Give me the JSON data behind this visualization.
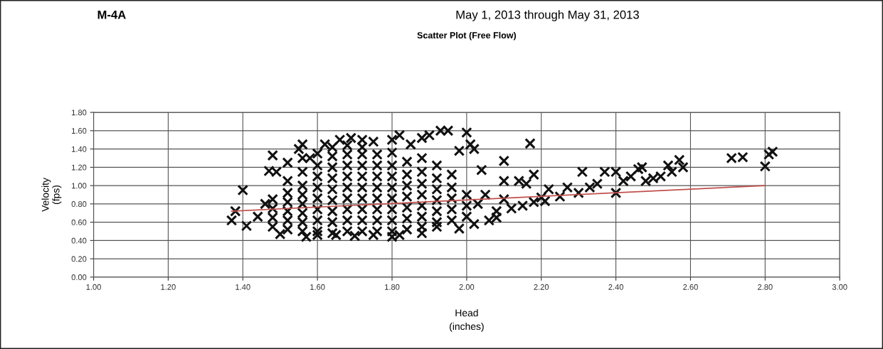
{
  "chart_data": {
    "type": "scatter",
    "title": "Scatter Plot (Free Flow)",
    "annotations": [
      "M-4A",
      "May 1, 2013 through May 31, 2013"
    ],
    "xlabel": "Head\n(inches)",
    "ylabel": "Velocity\n(fps)",
    "xlim": [
      1.0,
      3.0
    ],
    "ylim": [
      0.0,
      1.8
    ],
    "xticks": [
      {
        "value": 1.0,
        "label": "1.00"
      },
      {
        "value": 1.2,
        "label": "1.20"
      },
      {
        "value": 1.4,
        "label": "1.40"
      },
      {
        "value": 1.6,
        "label": "1.60"
      },
      {
        "value": 1.8,
        "label": "1.80"
      },
      {
        "value": 2.0,
        "label": "2.00"
      },
      {
        "value": 2.2,
        "label": "2.20"
      },
      {
        "value": 2.4,
        "label": "2.40"
      },
      {
        "value": 2.6,
        "label": "2.60"
      },
      {
        "value": 2.8,
        "label": "2.80"
      },
      {
        "value": 3.0,
        "label": "3.00"
      }
    ],
    "yticks": [
      {
        "value": 0.0,
        "label": "0.00"
      },
      {
        "value": 0.2,
        "label": "0.20"
      },
      {
        "value": 0.4,
        "label": "0.40"
      },
      {
        "value": 0.6,
        "label": "0.60"
      },
      {
        "value": 0.8,
        "label": "0.80"
      },
      {
        "value": 1.0,
        "label": "1.00"
      },
      {
        "value": 1.2,
        "label": "1.20"
      },
      {
        "value": 1.4,
        "label": "1.40"
      },
      {
        "value": 1.6,
        "label": "1.60"
      },
      {
        "value": 1.8,
        "label": "1.80"
      }
    ],
    "grid": true,
    "legend": false,
    "series": [
      {
        "color": "#111111",
        "marker": "cross",
        "x": [
          1.37,
          1.38,
          1.4,
          1.41,
          1.44,
          1.46,
          1.47,
          1.48,
          1.49,
          1.5,
          1.52,
          1.55,
          1.56,
          1.57,
          1.58,
          1.62,
          1.66,
          1.69,
          1.72,
          1.75,
          1.8,
          1.82,
          1.85,
          1.88,
          1.9,
          1.93,
          1.95,
          2.0,
          2.01,
          1.98,
          2.02,
          1.6,
          1.65,
          1.7,
          1.75,
          1.8,
          1.82,
          1.88,
          1.92,
          1.98,
          2.02,
          2.06,
          2.08,
          2.04,
          2.1,
          2.17,
          2.1,
          2.14,
          2.16,
          2.18,
          2.2,
          2.21,
          2.22,
          2.25,
          2.27,
          2.3,
          2.31,
          2.33,
          2.35,
          2.37,
          2.4,
          2.4,
          2.42,
          2.44,
          2.46,
          2.47,
          2.48,
          2.5,
          2.52,
          2.54,
          2.55,
          2.57,
          2.58,
          2.71,
          2.74,
          2.8,
          2.81,
          2.82,
          2.05,
          2.1,
          2.12,
          2.15,
          2.18,
          2.08,
          2.03,
          1.48,
          1.48,
          1.48,
          1.48,
          1.52,
          1.52,
          1.52,
          1.52,
          1.52,
          1.52,
          1.56,
          1.56,
          1.56,
          1.56,
          1.56,
          1.56,
          1.56,
          1.56,
          1.6,
          1.6,
          1.6,
          1.6,
          1.6,
          1.6,
          1.6,
          1.6,
          1.64,
          1.64,
          1.64,
          1.64,
          1.64,
          1.64,
          1.64,
          1.64,
          1.64,
          1.68,
          1.68,
          1.68,
          1.68,
          1.68,
          1.68,
          1.68,
          1.68,
          1.68,
          1.72,
          1.72,
          1.72,
          1.72,
          1.72,
          1.72,
          1.72,
          1.72,
          1.72,
          1.76,
          1.76,
          1.76,
          1.76,
          1.76,
          1.76,
          1.76,
          1.76,
          1.8,
          1.8,
          1.8,
          1.8,
          1.8,
          1.8,
          1.8,
          1.8,
          1.84,
          1.84,
          1.84,
          1.84,
          1.84,
          1.84,
          1.84,
          1.88,
          1.88,
          1.88,
          1.88,
          1.88,
          1.88,
          1.88,
          1.92,
          1.92,
          1.92,
          1.92,
          1.92,
          1.92,
          1.96,
          1.96,
          1.96,
          1.96,
          1.96,
          2.0,
          2.0,
          2.0
        ],
        "values": [
          0.62,
          0.72,
          0.95,
          0.56,
          0.66,
          0.8,
          1.16,
          1.33,
          1.15,
          0.47,
          1.25,
          1.4,
          1.45,
          0.44,
          1.3,
          1.45,
          1.5,
          1.52,
          1.5,
          1.48,
          1.5,
          1.55,
          1.45,
          1.52,
          1.55,
          1.6,
          1.6,
          1.58,
          1.45,
          1.38,
          1.4,
          0.46,
          0.46,
          0.45,
          0.46,
          0.44,
          0.46,
          0.48,
          0.55,
          0.53,
          0.58,
          0.62,
          0.65,
          1.17,
          1.27,
          1.46,
          1.05,
          1.05,
          1.02,
          1.12,
          0.87,
          0.83,
          0.96,
          0.88,
          0.98,
          0.92,
          1.15,
          0.98,
          1.02,
          1.15,
          0.92,
          1.15,
          1.05,
          1.1,
          1.18,
          1.2,
          1.05,
          1.08,
          1.1,
          1.22,
          1.15,
          1.28,
          1.2,
          1.3,
          1.31,
          1.21,
          1.34,
          1.37,
          0.9,
          0.85,
          0.75,
          0.78,
          0.82,
          0.72,
          0.8,
          0.55,
          0.65,
          0.75,
          0.85,
          0.52,
          0.62,
          0.72,
          0.82,
          0.92,
          1.05,
          0.5,
          0.6,
          0.7,
          0.8,
          0.9,
          1.0,
          1.15,
          1.3,
          0.5,
          0.62,
          0.74,
          0.86,
          0.98,
          1.1,
          1.22,
          1.35,
          0.48,
          0.6,
          0.72,
          0.84,
          0.96,
          1.08,
          1.2,
          1.32,
          1.42,
          0.5,
          0.62,
          0.74,
          0.86,
          0.98,
          1.1,
          1.22,
          1.34,
          1.44,
          0.5,
          0.62,
          0.74,
          0.86,
          0.98,
          1.1,
          1.22,
          1.34,
          1.42,
          0.5,
          0.62,
          0.74,
          0.86,
          0.98,
          1.1,
          1.22,
          1.34,
          0.5,
          0.62,
          0.74,
          0.86,
          0.98,
          1.1,
          1.22,
          1.36,
          0.52,
          0.64,
          0.76,
          0.88,
          1.0,
          1.12,
          1.26,
          0.55,
          0.66,
          0.78,
          0.9,
          1.02,
          1.15,
          1.3,
          0.6,
          0.72,
          0.84,
          0.96,
          1.08,
          1.22,
          0.62,
          0.74,
          0.86,
          0.98,
          1.12,
          0.66,
          0.78,
          0.9
        ]
      },
      {
        "type": "line",
        "color": "#c0504d",
        "marker": "none",
        "x": [
          1.37,
          2.8
        ],
        "values": [
          0.72,
          1.0
        ]
      }
    ]
  }
}
